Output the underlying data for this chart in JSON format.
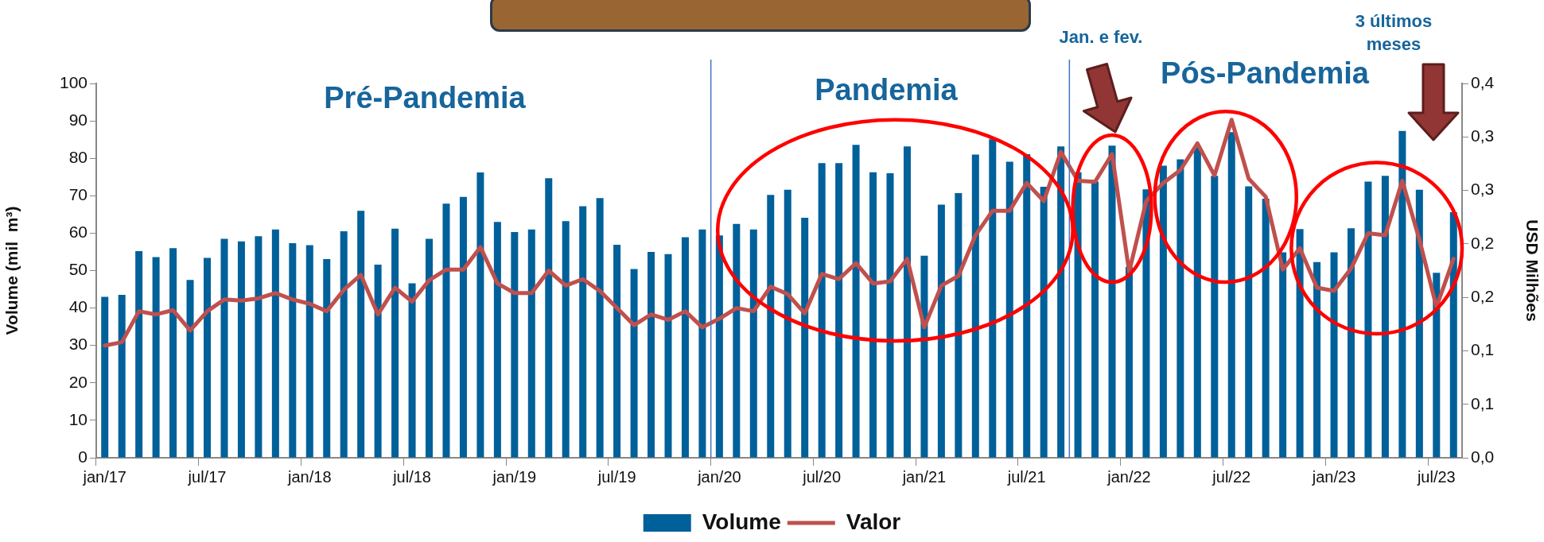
{
  "chart_data": {
    "type": "bar",
    "ylabel": "Volume (mil  m³)",
    "y2label": "USD Milhões",
    "categories": [
      "jan/17",
      null,
      null,
      null,
      null,
      null,
      "jul/17",
      null,
      null,
      null,
      null,
      null,
      "jan/18",
      null,
      null,
      null,
      null,
      null,
      "jul/18",
      null,
      null,
      null,
      null,
      null,
      "jan/19",
      null,
      null,
      null,
      null,
      null,
      "jul/19",
      null,
      null,
      null,
      null,
      null,
      "jan/20",
      null,
      null,
      null,
      null,
      null,
      "jul/20",
      null,
      null,
      null,
      null,
      null,
      "jan/21",
      null,
      null,
      null,
      null,
      null,
      "jul/21",
      null,
      null,
      null,
      null,
      null,
      "jan/22",
      null,
      null,
      null,
      null,
      null,
      "jul/22",
      null,
      null,
      null,
      null,
      null,
      "jan/23",
      null,
      null,
      null,
      null,
      null,
      "jul/23",
      null
    ],
    "series": [
      {
        "name": "Volume",
        "color": "#00609a",
        "values": [
          43,
          43.5,
          55.2,
          53.6,
          56,
          47.5,
          53.4,
          58.5,
          57.8,
          59.2,
          61,
          57.3,
          56.8,
          53.1,
          60.5,
          66,
          51.6,
          61.2,
          46.6,
          58.5,
          67.9,
          69.7,
          76.2,
          63,
          60.3,
          61,
          74.7,
          63.2,
          67.2,
          69.4,
          56.9,
          50.4,
          55,
          54.4,
          58.9,
          61,
          59.4,
          62.5,
          61,
          70.2,
          71.6,
          64.1,
          78.7,
          78.7,
          83.6,
          76.3,
          76,
          83.2,
          54,
          67.6,
          70.7,
          81,
          85.1,
          79.1,
          81.1,
          72.4,
          83.2,
          76.3,
          73.8,
          83.4,
          51,
          71.7,
          78,
          79.7,
          83,
          75.3,
          87,
          72.5,
          69.2,
          54.9,
          61.1,
          52.3,
          54.9,
          61.3,
          73.8,
          75.3,
          87.3,
          71.6,
          49.4,
          65.6
        ]
      },
      {
        "name": "Valor",
        "type": "line",
        "axis": "y2",
        "color": "#c0504d",
        "values": [
          0.105,
          0.108,
          0.137,
          0.134,
          0.138,
          0.119,
          0.137,
          0.148,
          0.147,
          0.149,
          0.154,
          0.148,
          0.144,
          0.137,
          0.157,
          0.171,
          0.134,
          0.159,
          0.146,
          0.166,
          0.176,
          0.176,
          0.197,
          0.163,
          0.154,
          0.154,
          0.175,
          0.161,
          0.167,
          0.156,
          0.14,
          0.124,
          0.134,
          0.129,
          0.137,
          0.122,
          0.13,
          0.14,
          0.137,
          0.16,
          0.153,
          0.135,
          0.172,
          0.167,
          0.182,
          0.163,
          0.165,
          0.186,
          0.122,
          0.161,
          0.17,
          0.208,
          0.231,
          0.231,
          0.257,
          0.24,
          0.286,
          0.259,
          0.258,
          0.284,
          0.174,
          0.24,
          0.257,
          0.269,
          0.294,
          0.264,
          0.316,
          0.261,
          0.244,
          0.176,
          0.196,
          0.159,
          0.156,
          0.177,
          0.21,
          0.208,
          0.259,
          0.204,
          0.141,
          0.186
        ]
      }
    ],
    "ylim": [
      0,
      100
    ],
    "yticks": [
      0,
      10,
      20,
      30,
      40,
      50,
      60,
      70,
      80,
      90,
      100
    ],
    "y2lim": [
      0,
      0.35
    ],
    "y2ticks": [
      {
        "value": 0,
        "label": "0,0"
      },
      {
        "value": 0.05,
        "label": "0,1"
      },
      {
        "value": 0.1,
        "label": "0,1"
      },
      {
        "value": 0.15,
        "label": "0,2"
      },
      {
        "value": 0.2,
        "label": "0,2"
      },
      {
        "value": 0.25,
        "label": "0,3"
      },
      {
        "value": 0.3,
        "label": "0,3"
      },
      {
        "value": 0.35,
        "label": "0,4"
      }
    ],
    "annotations": [
      "Pré-Pandemia",
      "Pandemia",
      "Pós-Pandemia",
      "Jan. e fev.",
      "3 últimos meses"
    ],
    "legend": "bottom"
  }
}
